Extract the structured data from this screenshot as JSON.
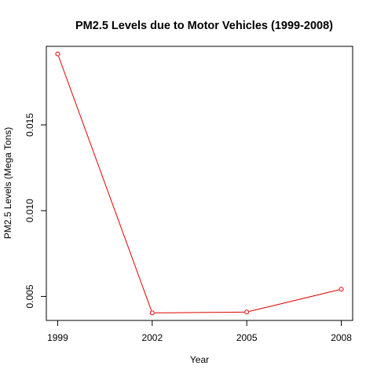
{
  "chart_data": {
    "type": "line",
    "title": "PM2.5 Levels due to Motor Vehicles (1999-2008)",
    "xlabel": "Year",
    "ylabel": "PM2.5 Levels (Mega Tons)",
    "x": [
      1999,
      2002,
      2005,
      2008
    ],
    "series": [
      {
        "values": [
          0.01914,
          0.00404,
          0.00409,
          0.00542
        ]
      }
    ],
    "xticks": [
      1999,
      2002,
      2005,
      2008
    ],
    "xtick_labels": [
      "1999",
      "2002",
      "2005",
      "2008"
    ],
    "yticks": [
      0.005,
      0.01,
      0.015
    ],
    "ytick_labels": [
      "0.005",
      "0.010",
      "0.015"
    ],
    "xlim": [
      1998.64,
      2008.36
    ],
    "ylim": [
      0.0036,
      0.01958
    ],
    "grid": false,
    "legend": "none",
    "line_color": "#dd0000",
    "marker": "open-circle"
  }
}
